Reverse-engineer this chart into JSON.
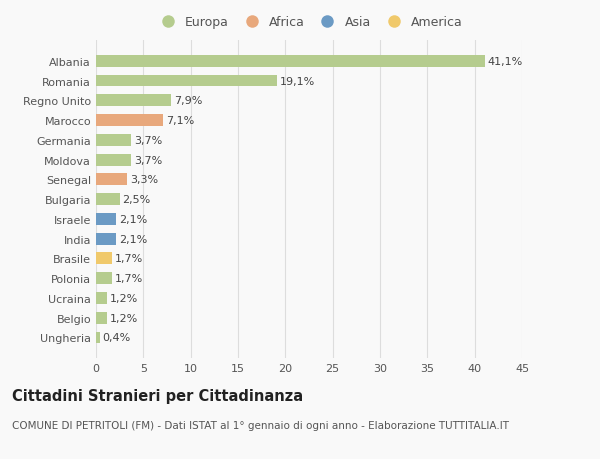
{
  "countries": [
    "Albania",
    "Romania",
    "Regno Unito",
    "Marocco",
    "Germania",
    "Moldova",
    "Senegal",
    "Bulgaria",
    "Israele",
    "India",
    "Brasile",
    "Polonia",
    "Ucraina",
    "Belgio",
    "Ungheria"
  ],
  "values": [
    41.1,
    19.1,
    7.9,
    7.1,
    3.7,
    3.7,
    3.3,
    2.5,
    2.1,
    2.1,
    1.7,
    1.7,
    1.2,
    1.2,
    0.4
  ],
  "labels": [
    "41,1%",
    "19,1%",
    "7,9%",
    "7,1%",
    "3,7%",
    "3,7%",
    "3,3%",
    "2,5%",
    "2,1%",
    "2,1%",
    "1,7%",
    "1,7%",
    "1,2%",
    "1,2%",
    "0,4%"
  ],
  "categories": [
    "Europa",
    "Europa",
    "Europa",
    "Africa",
    "Europa",
    "Europa",
    "Africa",
    "Europa",
    "Asia",
    "Asia",
    "America",
    "Europa",
    "Europa",
    "Europa",
    "Europa"
  ],
  "colors": {
    "Europa": "#b5cc8e",
    "Africa": "#e8a87c",
    "Asia": "#6b9ac4",
    "America": "#f0c96b"
  },
  "legend_order": [
    "Europa",
    "Africa",
    "Asia",
    "America"
  ],
  "legend_colors": [
    "#b5cc8e",
    "#e8a87c",
    "#6b9ac4",
    "#f0c96b"
  ],
  "title": "Cittadini Stranieri per Cittadinanza",
  "subtitle": "COMUNE DI PETRITOLI (FM) - Dati ISTAT al 1° gennaio di ogni anno - Elaborazione TUTTITALIA.IT",
  "xlim": [
    0,
    45
  ],
  "xticks": [
    0,
    5,
    10,
    15,
    20,
    25,
    30,
    35,
    40,
    45
  ],
  "background_color": "#f9f9f9",
  "grid_color": "#dddddd",
  "bar_height": 0.6,
  "label_fontsize": 8,
  "tick_fontsize": 8,
  "title_fontsize": 10.5,
  "subtitle_fontsize": 7.5,
  "legend_fontsize": 9
}
